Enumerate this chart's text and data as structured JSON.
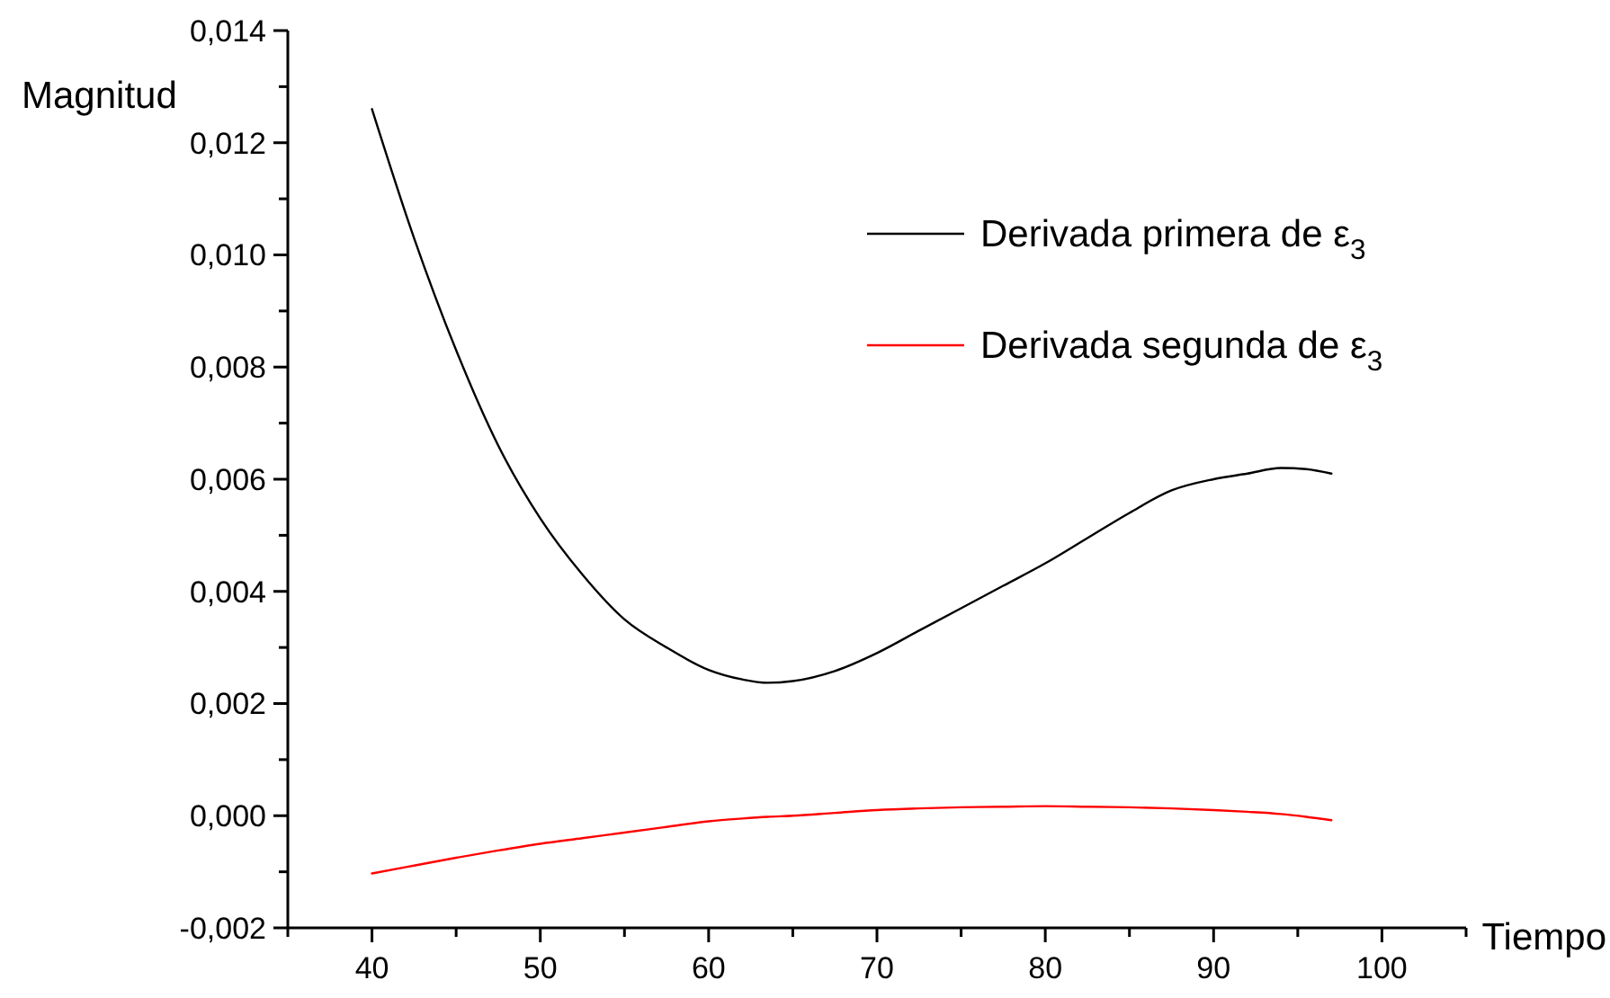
{
  "chart_data": {
    "type": "line",
    "xlabel": "Tiempo",
    "ylabel": "Magnitud",
    "xlim": [
      35,
      105
    ],
    "ylim": [
      -0.002,
      0.014
    ],
    "xticks": [
      {
        "value": 35,
        "label": null
      },
      40,
      {
        "value": 45,
        "label": null
      },
      50,
      {
        "value": 55,
        "label": null
      },
      60,
      {
        "value": 65,
        "label": null
      },
      70,
      {
        "value": 75,
        "label": null
      },
      80,
      {
        "value": 85,
        "label": null
      },
      90,
      {
        "value": 95,
        "label": null
      },
      100,
      {
        "value": 105,
        "label": null
      }
    ],
    "yticks": [
      {
        "value": -0.002,
        "label": "-0,002"
      },
      {
        "value": -0.001,
        "label": null
      },
      {
        "value": 0,
        "label": "0,000"
      },
      {
        "value": 0.001,
        "label": null
      },
      {
        "value": 0.002,
        "label": "0,002"
      },
      {
        "value": 0.003,
        "label": null
      },
      {
        "value": 0.004,
        "label": "0,004"
      },
      {
        "value": 0.005,
        "label": null
      },
      {
        "value": 0.006,
        "label": "0,006"
      },
      {
        "value": 0.007,
        "label": null
      },
      {
        "value": 0.008,
        "label": "0,008"
      },
      {
        "value": 0.009,
        "label": null
      },
      {
        "value": 0.01,
        "label": "0,010"
      },
      {
        "value": 0.011,
        "label": null
      },
      {
        "value": 0.012,
        "label": "0,012"
      },
      {
        "value": 0.013,
        "label": null
      },
      {
        "value": 0.014,
        "label": "0,014"
      }
    ],
    "x": [
      40,
      42.5,
      45,
      47.5,
      50,
      52.5,
      55,
      57.5,
      60,
      62,
      63.5,
      65,
      67.5,
      70,
      72.5,
      75,
      77.5,
      80,
      82.5,
      85,
      87.5,
      90,
      92,
      94,
      95.5,
      97
    ],
    "series": [
      {
        "name": "Derivada primera de ε$_{3}$",
        "color": "#000000",
        "values": [
          0.0126,
          0.0103,
          0.0083,
          0.0066,
          0.0053,
          0.0043,
          0.0035,
          0.003,
          0.0026,
          0.00243,
          0.00237,
          0.0024,
          0.00258,
          0.0029,
          0.0033,
          0.0037,
          0.0041,
          0.0045,
          0.00495,
          0.0054,
          0.0058,
          0.006,
          0.0061,
          0.0062,
          0.00618,
          0.0061
        ]
      },
      {
        "name": "Derivada segunda de ε$_{3}$",
        "color": "#ff0000",
        "values": [
          -0.00103,
          -0.00089,
          -0.00075,
          -0.00062,
          -0.0005,
          -0.0004,
          -0.0003,
          -0.0002,
          -0.0001,
          -5e-05,
          -2e-05,
          0,
          5e-05,
          0.0001,
          0.00013,
          0.00015,
          0.00016,
          0.00017,
          0.00016,
          0.00015,
          0.00013,
          0.0001,
          7e-05,
          3e-05,
          -2e-05,
          -8e-05
        ]
      }
    ],
    "legend": "top right",
    "marker": "none",
    "line_style": "solid",
    "grid": false
  }
}
